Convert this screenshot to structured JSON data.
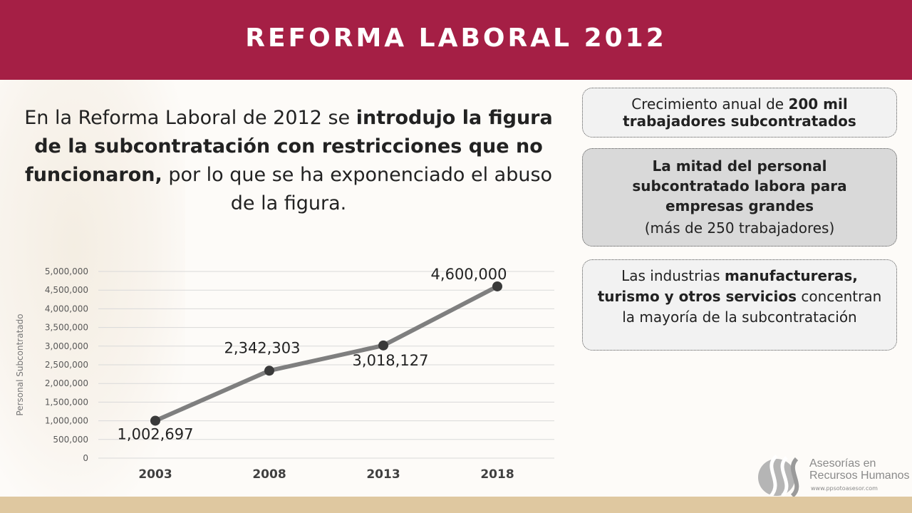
{
  "header": {
    "title": "REFORMA LABORAL 2012"
  },
  "intro": {
    "part1": "En la Reforma Laboral de 2012 se ",
    "bold": "introdujo la figura de la subcontratación con restricciones que no funcionaron,",
    "part2": " por lo que se ha exponenciado el abuso de la figura."
  },
  "cards": [
    {
      "text": "Crecimiento anual de ",
      "bold": "200 mil trabajadores subcontratados"
    },
    {
      "bold": "La mitad del personal subcontratado labora para empresas grandes",
      "text": "(más de 250 trabajadores)"
    },
    {
      "text1": "Las industrias ",
      "bold": "manufactureras, turismo y otros servicios",
      "text2": " concentran la mayoría de la subcontratación"
    }
  ],
  "logo": {
    "line1": "Asesorías en",
    "line2": "Recursos Humanos",
    "url": "www.ppsotoasesor.com"
  },
  "colors": {
    "header": "#a51f45",
    "footer": "#dfc8a0",
    "line": "#7f7f7f",
    "marker": "#3a3a3a"
  },
  "chart_data": {
    "type": "line",
    "categories": [
      "2003",
      "2008",
      "2013",
      "2018"
    ],
    "values": [
      1002697,
      2342303,
      3018127,
      4600000
    ],
    "data_labels": [
      "1,002,697",
      "2,342,303",
      "3,018,127",
      "4,600,000"
    ],
    "ylabel": "Personal Subcontratado",
    "ylim": [
      0,
      5000000
    ],
    "yticks": [
      "0",
      "500,000",
      "1,000,000",
      "1,500,000",
      "2,000,000",
      "2,500,000",
      "3,000,000",
      "3,500,000",
      "4,000,000",
      "4,500,000",
      "5,000,000"
    ],
    "grid": true
  }
}
